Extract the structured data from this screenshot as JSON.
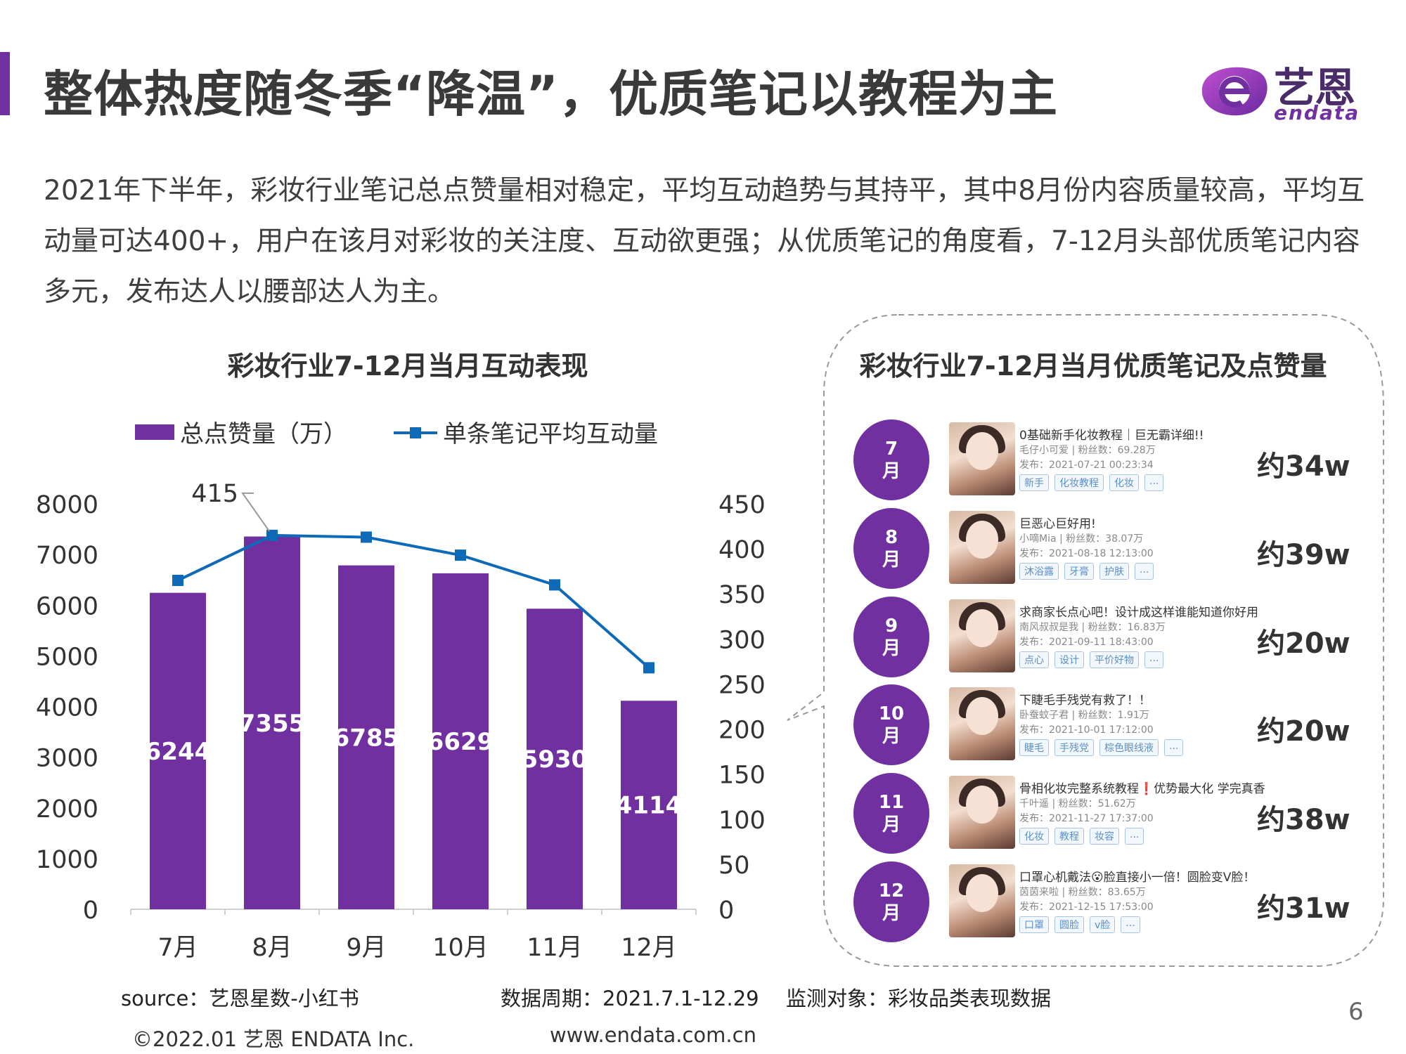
{
  "header": {
    "title": "整体热度随冬季“降温”，优质笔记以教程为主",
    "logo_cn": "艺恩",
    "logo_en": "endata"
  },
  "description": "2021年下半年，彩妆行业笔记总点赞量相对稳定，平均互动趋势与其持平，其中8月份内容质量较高，平均互动量可达400+，用户在该月对彩妆的关注度、互动欲更强；从优质笔记的角度看，7-12月头部优质笔记内容多元，发布达人以腰部达人为主。",
  "chart_data": {
    "type": "bar",
    "title": "彩妆行业7-12月当月互动表现",
    "categories": [
      "7月",
      "8月",
      "9月",
      "10月",
      "11月",
      "12月"
    ],
    "series": [
      {
        "name": "总点赞量（万）",
        "type": "bar",
        "axis": "left",
        "values": [
          6244,
          7355,
          6785,
          6629,
          5930,
          4114
        ],
        "color": "#7030a0"
      },
      {
        "name": "单条笔记平均互动量",
        "type": "line",
        "axis": "right",
        "values": [
          365,
          415,
          413,
          393,
          360,
          268
        ],
        "color": "#0e6ab7"
      }
    ],
    "y_left": {
      "min": 0,
      "max": 8000,
      "ticks": [
        0,
        1000,
        2000,
        3000,
        4000,
        5000,
        6000,
        7000,
        8000
      ]
    },
    "y_right": {
      "min": 0,
      "max": 450,
      "ticks": [
        0,
        50,
        100,
        150,
        200,
        250,
        300,
        350,
        400,
        450
      ]
    },
    "annotation": {
      "text": "415",
      "category": "8月",
      "series": "单条笔记平均互动量"
    },
    "legend_position": "top",
    "grid": false
  },
  "panel": {
    "title": "彩妆行业7-12月当月优质笔记及点赞量",
    "rows": [
      {
        "month_num": "7",
        "month_unit": "月",
        "title": "0基础新手化妆教程｜巨无霸详细!!",
        "meta": "毛仔小可爱 | 粉丝数：69.28万",
        "date": "发布：2021-07-21 00:23:34",
        "tags": [
          "新手",
          "化妆教程",
          "化妆",
          "..."
        ],
        "likes": "约34w"
      },
      {
        "month_num": "8",
        "month_unit": "月",
        "title": "巨恶心巨好用!",
        "meta": "小嘀Mia | 粉丝数：38.07万",
        "date": "发布：2021-08-18 12:13:00",
        "tags": [
          "沐浴露",
          "牙膏",
          "护肤",
          "..."
        ],
        "likes": "约39w"
      },
      {
        "month_num": "9",
        "month_unit": "月",
        "title": "求商家长点心吧！设计成这样谁能知道你好用",
        "meta": "南风叔叔是我 | 粉丝数：16.83万",
        "date": "发布：2021-09-11 18:43:00",
        "tags": [
          "点心",
          "设计",
          "平价好物",
          "..."
        ],
        "likes": "约20w"
      },
      {
        "month_num": "10",
        "month_unit": "月",
        "title": "下睫毛手残党有救了！！",
        "meta": "卧蚕蚊子君 | 粉丝数：1.91万",
        "date": "发布：2021-10-01 17:12:00",
        "tags": [
          "睫毛",
          "手残党",
          "棕色眼线液",
          "..."
        ],
        "likes": "约20w"
      },
      {
        "month_num": "11",
        "month_unit": "月",
        "title": "骨相化妆完整系统教程❗️优势最大化 学完真香",
        "meta": "千叶遥 | 粉丝数：51.62万",
        "date": "发布：2021-11-27 17:37:00",
        "tags": [
          "化妆",
          "教程",
          "妆容",
          "..."
        ],
        "likes": "约38w"
      },
      {
        "month_num": "12",
        "month_unit": "月",
        "title": "口罩心机戴法😮脸直接小一倍！圆脸变V脸！",
        "meta": "茵茵来啦 | 粉丝数：83.65万",
        "date": "发布：2021-12-15 17:53:00",
        "tags": [
          "口罩",
          "圆脸",
          "v脸",
          "..."
        ],
        "likes": "约31w"
      }
    ]
  },
  "footer": {
    "source": "source：艺恩星数-小红书",
    "period": "数据周期：2021.7.1-12.29",
    "target": "监测对象：彩妆品类表现数据",
    "copyright": "©2022.01 艺恩 ENDATA Inc.",
    "website": "www.endata.com.cn",
    "page_number": "6"
  }
}
